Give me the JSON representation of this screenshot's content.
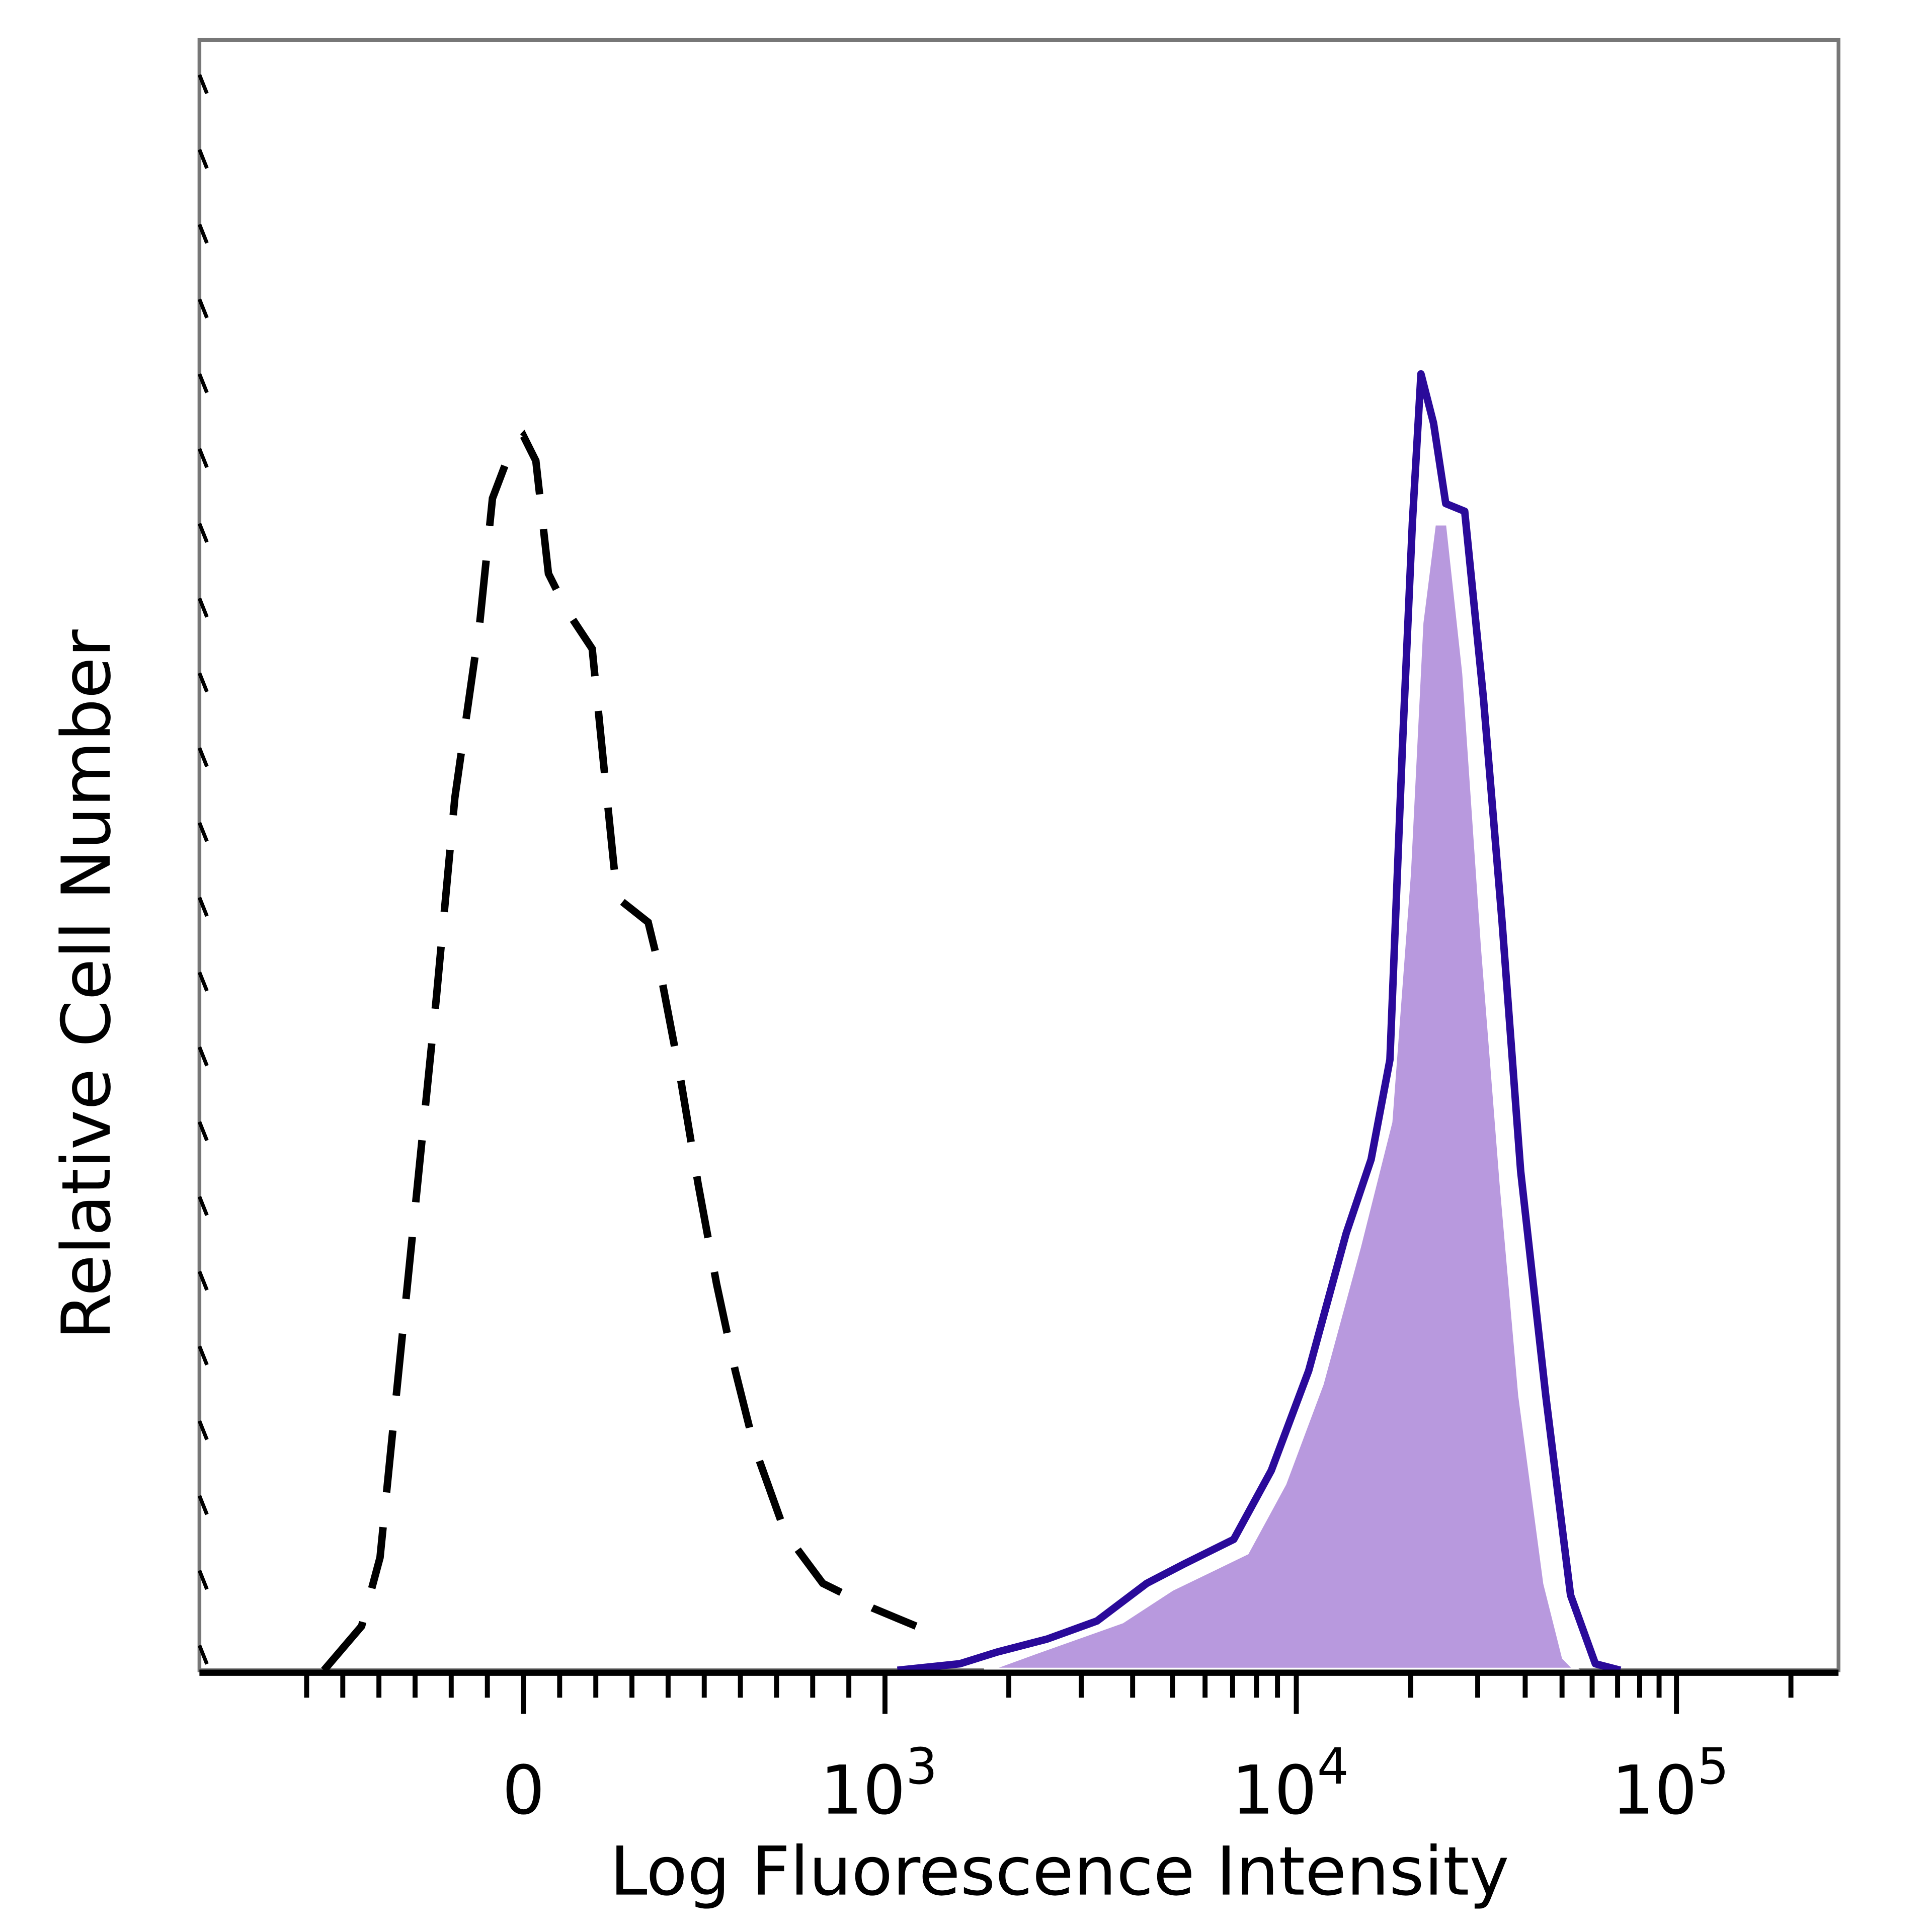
{
  "chart_data": {
    "type": "area",
    "title": "",
    "xlabel": "Log Fluorescence Intensity",
    "ylabel": "Relative Cell Number",
    "x_scale": "biexponential",
    "xlim": [
      -700,
      200000
    ],
    "ylim": [
      0,
      100
    ],
    "x_ticks": [
      {
        "value": 0,
        "base": "0",
        "exp": ""
      },
      {
        "value": 1000,
        "base": "10",
        "exp": "3"
      },
      {
        "value": 10000,
        "base": "10",
        "exp": "4"
      },
      {
        "value": 100000,
        "base": "10",
        "exp": "5"
      }
    ],
    "grid": false,
    "legend": "none",
    "series": [
      {
        "style": "dashed-outline",
        "color": "#000000",
        "points": [
          [
            -552,
            0
          ],
          [
            -448,
            3.4
          ],
          [
            -397,
            8.7
          ],
          [
            -345,
            23.1
          ],
          [
            -293,
            37.5
          ],
          [
            -241,
            51.9
          ],
          [
            -190,
            67.3
          ],
          [
            -121,
            80.8
          ],
          [
            -86,
            90.4
          ],
          [
            -34,
            94.2
          ],
          [
            0,
            95.2
          ],
          [
            34,
            93.3
          ],
          [
            69,
            84.6
          ],
          [
            121,
            81.7
          ],
          [
            190,
            78.8
          ],
          [
            224,
            69.2
          ],
          [
            259,
            59.6
          ],
          [
            345,
            57.7
          ],
          [
            379,
            53.8
          ],
          [
            431,
            46.2
          ],
          [
            483,
            37.5
          ],
          [
            534,
            29.8
          ],
          [
            586,
            23.1
          ],
          [
            638,
            17.3
          ],
          [
            724,
            10.6
          ],
          [
            828,
            6.7
          ],
          [
            966,
            4.8
          ],
          [
            1190,
            3.4
          ]
        ]
      },
      {
        "style": "filled",
        "color": "#b899de",
        "points": [
          [
            1748,
            0
          ],
          [
            2310,
            1.4
          ],
          [
            3767,
            3.8
          ],
          [
            4977,
            6.3
          ],
          [
            7568,
            9.1
          ],
          [
            9333,
            14.4
          ],
          [
            11630,
            22.1
          ],
          [
            14590,
            32.7
          ],
          [
            17630,
            42.3
          ],
          [
            19730,
            61.5
          ],
          [
            21280,
            80.8
          ],
          [
            22960,
            88.5
          ],
          [
            25120,
            88.5
          ],
          [
            27720,
            76.9
          ],
          [
            31060,
            55.8
          ],
          [
            34780,
            37.5
          ],
          [
            38930,
            21.2
          ],
          [
            45290,
            6.7
          ],
          [
            50700,
            1.0
          ],
          [
            54700,
            0
          ]
        ]
      },
      {
        "style": "solid-outline",
        "color": "#2a0a9a",
        "points": [
          [
            1072,
            0
          ],
          [
            1520,
            0.5
          ],
          [
            1874,
            1.4
          ],
          [
            2477,
            2.4
          ],
          [
            3275,
            3.8
          ],
          [
            4329,
            6.7
          ],
          [
            5337,
            8.2
          ],
          [
            7047,
            10.1
          ],
          [
            8690,
            15.4
          ],
          [
            10780,
            23.1
          ],
          [
            13530,
            33.7
          ],
          [
            15730,
            39.4
          ],
          [
            17630,
            47.1
          ],
          [
            19010,
            71.2
          ],
          [
            20190,
            88.5
          ],
          [
            21280,
            100
          ],
          [
            22960,
            96.2
          ],
          [
            24730,
            90.0
          ],
          [
            27720,
            89.4
          ],
          [
            31060,
            75.0
          ],
          [
            34780,
            57.7
          ],
          [
            38930,
            38.5
          ],
          [
            45290,
            21.2
          ],
          [
            52620,
            5.8
          ],
          [
            61190,
            0.5
          ],
          [
            71150,
            0
          ]
        ]
      }
    ]
  }
}
